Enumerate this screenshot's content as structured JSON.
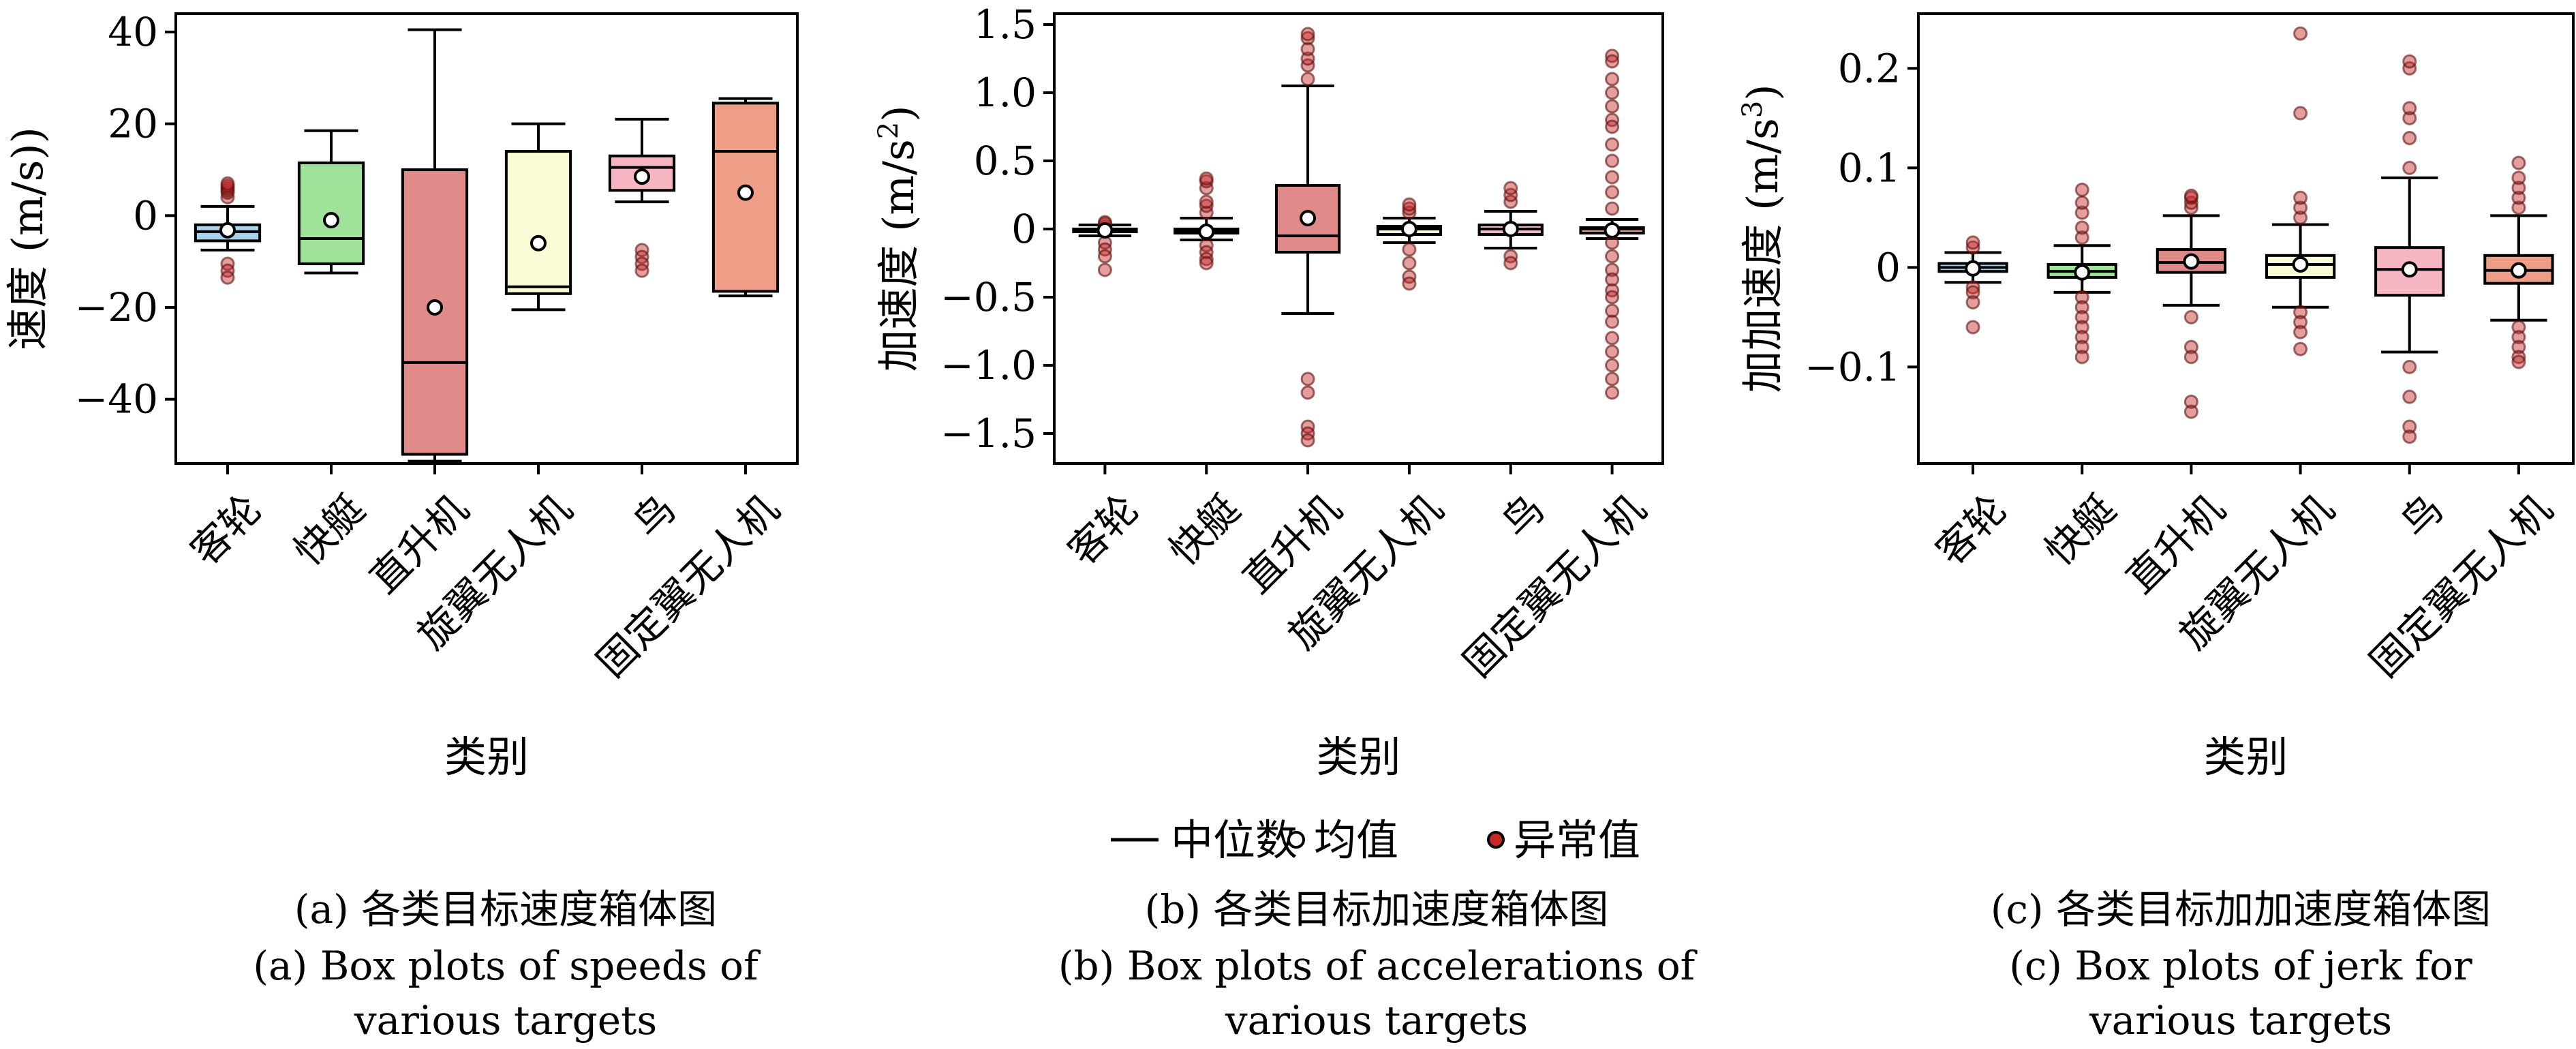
{
  "legend": {
    "median": "中位数",
    "mean": "均值",
    "outlier": "异常值"
  },
  "colors": {
    "客轮": "#a7d3ea",
    "快艇": "#9fe29a",
    "直升机": "#e08a8a",
    "旋翼无人机": "#fbfbd6",
    "鸟": "#f6b7c2",
    "固定翼无人机": "#ee9e86",
    "outlier": "#c62828",
    "outlier_line": "#8b1a1a"
  },
  "chart_data": [
    {
      "type": "box",
      "categories": [
        "客轮",
        "快艇",
        "直升机",
        "旋翼无人机",
        "鸟",
        "固定翼无人机"
      ],
      "xlabel": "类别",
      "ylabel_prefix": "速度",
      "ylabel_unit": "(m/s)",
      "ylabel_sup": "",
      "ylim": [
        -54,
        44
      ],
      "yticks": [
        -40,
        -20,
        0,
        20,
        40
      ],
      "ytick_labels": [
        "−40",
        "−20",
        "0",
        "20",
        "40"
      ],
      "caption_cn": "(a) 各类目标速度箱体图",
      "caption_en_line1": "(a) Box plots of speeds of",
      "caption_en_line2": "various targets",
      "boxes": [
        {
          "whislo": -7.5,
          "q1": -5.5,
          "med": -3.5,
          "q3": -2,
          "whishi": 2,
          "mean": -3.2,
          "fliers": [
            4,
            5,
            5.5,
            6,
            6.5,
            7,
            -10.5,
            -12,
            -13.5
          ]
        },
        {
          "whislo": -12.5,
          "q1": -10.5,
          "med": -5,
          "q3": 11.5,
          "whishi": 18.5,
          "mean": -1,
          "fliers": []
        },
        {
          "whislo": -53.5,
          "q1": -52,
          "med": -32,
          "q3": 10,
          "whishi": 40.5,
          "mean": -20,
          "fliers": []
        },
        {
          "whislo": -20.5,
          "q1": -17,
          "med": -15.5,
          "q3": 14,
          "whishi": 20,
          "mean": -6,
          "fliers": []
        },
        {
          "whislo": 3,
          "q1": 5.5,
          "med": 10.5,
          "q3": 13,
          "whishi": 21,
          "mean": 8.5,
          "fliers": [
            -7.5,
            -9,
            -10.5,
            -12
          ]
        },
        {
          "whislo": -17.5,
          "q1": -16.5,
          "med": 14,
          "q3": 24.5,
          "whishi": 25.5,
          "mean": 5,
          "fliers": []
        }
      ]
    },
    {
      "type": "box",
      "categories": [
        "客轮",
        "快艇",
        "直升机",
        "旋翼无人机",
        "鸟",
        "固定翼无人机"
      ],
      "xlabel": "类别",
      "ylabel_prefix": "加速度",
      "ylabel_unit": "(m/s",
      "ylabel_sup": "2",
      "ylim": [
        -1.72,
        1.58
      ],
      "yticks": [
        -1.5,
        -1.0,
        -0.5,
        0,
        0.5,
        1.0,
        1.5
      ],
      "ytick_labels": [
        "−1.5",
        "−1.0",
        "−0.5",
        "0",
        "0.5",
        "1.0",
        "1.5"
      ],
      "caption_cn": "(b) 各类目标加速度箱体图",
      "caption_en_line1": "(b) Box plots of accelerations of",
      "caption_en_line2": "various targets",
      "boxes": [
        {
          "whislo": -0.05,
          "q1": -0.02,
          "med": -0.01,
          "q3": 0.0,
          "whishi": 0.03,
          "mean": -0.01,
          "fliers": [
            0.02,
            0.04,
            0.05,
            -0.1,
            -0.15,
            -0.2,
            -0.3
          ]
        },
        {
          "whislo": -0.08,
          "q1": -0.03,
          "med": -0.02,
          "q3": 0.0,
          "whishi": 0.08,
          "mean": -0.02,
          "fliers": [
            0.12,
            0.17,
            0.2,
            0.3,
            0.35,
            0.37,
            -0.12,
            -0.17,
            -0.22,
            -0.25
          ]
        },
        {
          "whislo": -0.62,
          "q1": -0.17,
          "med": -0.05,
          "q3": 0.32,
          "whishi": 1.05,
          "mean": 0.08,
          "fliers": [
            1.1,
            1.2,
            1.25,
            1.32,
            1.4,
            1.43,
            -1.1,
            -1.2,
            -1.45,
            -1.5,
            -1.55
          ]
        },
        {
          "whislo": -0.1,
          "q1": -0.04,
          "med": 0.0,
          "q3": 0.02,
          "whishi": 0.08,
          "mean": 0.0,
          "fliers": [
            0.12,
            0.15,
            0.18,
            -0.15,
            -0.25,
            -0.35,
            -0.4
          ]
        },
        {
          "whislo": -0.14,
          "q1": -0.04,
          "med": 0.0,
          "q3": 0.03,
          "whishi": 0.13,
          "mean": 0.0,
          "fliers": [
            0.2,
            0.25,
            0.3,
            -0.2,
            -0.25
          ]
        },
        {
          "whislo": -0.07,
          "q1": -0.03,
          "med": 0.0,
          "q3": 0.01,
          "whishi": 0.07,
          "mean": -0.01,
          "fliers": [
            1.27,
            1.23,
            1.1,
            1.0,
            0.9,
            0.8,
            0.75,
            0.62,
            0.5,
            0.38,
            0.27,
            0.15,
            -0.1,
            -0.2,
            -0.3,
            -0.37,
            -0.45,
            -0.5,
            -0.6,
            -0.68,
            -0.8,
            -0.9,
            -1.0,
            -1.1,
            -1.2
          ]
        }
      ]
    },
    {
      "type": "box",
      "categories": [
        "客轮",
        "快艇",
        "直升机",
        "旋翼无人机",
        "鸟",
        "固定翼无人机"
      ],
      "xlabel": "类别",
      "ylabel_prefix": "加加速度",
      "ylabel_unit": "(m/s",
      "ylabel_sup": "3",
      "ylim": [
        -0.197,
        0.255
      ],
      "yticks": [
        -0.1,
        0,
        0.1,
        0.2
      ],
      "ytick_labels": [
        "−0.1",
        "0",
        "0.1",
        "0.2"
      ],
      "caption_cn": "(c) 各类目标加加速度箱体图",
      "caption_en_line1": "(c) Box plots of jerk for",
      "caption_en_line2": "various targets",
      "boxes": [
        {
          "whislo": -0.015,
          "q1": -0.004,
          "med": 0.0,
          "q3": 0.004,
          "whishi": 0.015,
          "mean": -0.001,
          "fliers": [
            0.02,
            0.025,
            -0.02,
            -0.025,
            -0.035,
            -0.06
          ]
        },
        {
          "whislo": -0.025,
          "q1": -0.01,
          "med": -0.004,
          "q3": 0.003,
          "whishi": 0.022,
          "mean": -0.005,
          "fliers": [
            0.03,
            0.04,
            0.055,
            0.065,
            0.078,
            -0.03,
            -0.04,
            -0.05,
            -0.06,
            -0.07,
            -0.08,
            -0.09
          ]
        },
        {
          "whislo": -0.038,
          "q1": -0.005,
          "med": 0.005,
          "q3": 0.018,
          "whishi": 0.052,
          "mean": 0.006,
          "fliers": [
            0.06,
            0.065,
            0.07,
            0.072,
            -0.05,
            -0.08,
            -0.09,
            -0.135,
            -0.145
          ]
        },
        {
          "whislo": -0.04,
          "q1": -0.01,
          "med": 0.003,
          "q3": 0.012,
          "whishi": 0.043,
          "mean": 0.003,
          "fliers": [
            0.05,
            0.06,
            0.07,
            0.155,
            0.235,
            -0.045,
            -0.055,
            -0.065,
            -0.082
          ]
        },
        {
          "whislo": -0.085,
          "q1": -0.028,
          "med": -0.002,
          "q3": 0.02,
          "whishi": 0.09,
          "mean": -0.002,
          "fliers": [
            0.1,
            0.13,
            0.15,
            0.16,
            0.2,
            0.207,
            -0.1,
            -0.13,
            -0.16,
            -0.17
          ]
        },
        {
          "whislo": -0.053,
          "q1": -0.016,
          "med": -0.003,
          "q3": 0.012,
          "whishi": 0.052,
          "mean": -0.003,
          "fliers": [
            0.06,
            0.07,
            0.08,
            0.09,
            0.105,
            -0.06,
            -0.07,
            -0.08,
            -0.09,
            -0.095
          ]
        }
      ]
    }
  ]
}
